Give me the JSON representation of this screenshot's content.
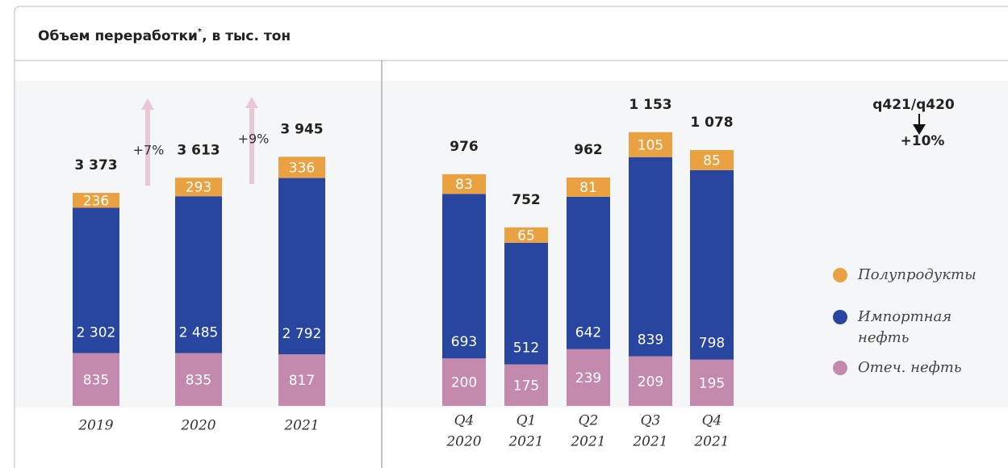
{
  "header": {
    "title": "Объем переработки",
    "footnote_mark": "*",
    "unit": ", в тыс. тон"
  },
  "chart_data": [
    {
      "type": "stacked_bar",
      "categories": [
        "2019",
        "2020",
        "2021"
      ],
      "ylim": [
        0,
        5150
      ],
      "series": [
        {
          "name": "Отеч. нефть",
          "color": "#c48aae",
          "values": [
            835,
            835,
            817
          ]
        },
        {
          "name": "Импортная нефть",
          "color": "#2846a0",
          "values": [
            2302,
            2485,
            2792
          ],
          "value_labels": [
            "2 302",
            "2 485",
            "2 792"
          ]
        },
        {
          "name": "Полупродукты",
          "color": "#e9a142",
          "values": [
            236,
            293,
            336
          ]
        }
      ],
      "totals": [
        3373,
        3613,
        3945
      ],
      "total_labels": [
        "3 373",
        "3 613",
        "3 945"
      ],
      "annotations": [
        "+7%",
        "+9%"
      ]
    },
    {
      "type": "stacked_bar",
      "categories": [
        [
          "Q4",
          "2020"
        ],
        [
          "Q1",
          "2021"
        ],
        [
          "Q2",
          "2021"
        ],
        [
          "Q3",
          "2021"
        ],
        [
          "Q4",
          "2021"
        ]
      ],
      "ylim": [
        0,
        1370
      ],
      "series": [
        {
          "name": "Отеч. нефть",
          "color": "#c48aae",
          "values": [
            200,
            175,
            239,
            209,
            195
          ]
        },
        {
          "name": "Импортная нефть",
          "color": "#2846a0",
          "values": [
            693,
            512,
            642,
            839,
            798
          ]
        },
        {
          "name": "Полупродукты",
          "color": "#e9a142",
          "values": [
            83,
            65,
            81,
            105,
            85
          ]
        }
      ],
      "totals": [
        976,
        752,
        962,
        1153,
        1078
      ],
      "total_labels": [
        "976",
        "752",
        "962",
        "1 153",
        "1 078"
      ],
      "annotations": [
        "q421/q420",
        "+10%"
      ]
    }
  ]
}
